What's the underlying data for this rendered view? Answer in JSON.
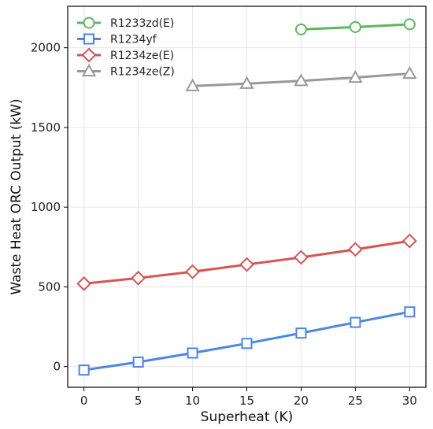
{
  "chart_data": {
    "type": "line",
    "title": "",
    "xlabel": "Superheat (K)",
    "ylabel": "Waste Heat ORC Output (kW)",
    "xlim": [
      -1.5,
      31.5
    ],
    "ylim": [
      -130,
      2260
    ],
    "xticks": [
      0,
      5,
      10,
      15,
      20,
      25,
      30
    ],
    "yticks": [
      0,
      500,
      1000,
      1500,
      2000
    ],
    "grid": true,
    "legend_position": "top-left",
    "series": [
      {
        "name": "R1233zd(E)",
        "color": "#5cb85c",
        "marker": "circle",
        "points": [
          [
            20,
            2115
          ],
          [
            25,
            2130
          ],
          [
            30,
            2147
          ]
        ]
      },
      {
        "name": "R1234yf",
        "color": "#4a86e8",
        "marker": "square",
        "points": [
          [
            0,
            -22
          ],
          [
            5,
            28
          ],
          [
            10,
            85
          ],
          [
            15,
            145
          ],
          [
            20,
            210
          ],
          [
            25,
            277
          ],
          [
            30,
            343
          ]
        ]
      },
      {
        "name": "R1234ze(E)",
        "color": "#d9534f",
        "marker": "diamond",
        "points": [
          [
            0,
            520
          ],
          [
            5,
            555
          ],
          [
            10,
            595
          ],
          [
            15,
            640
          ],
          [
            20,
            685
          ],
          [
            25,
            735
          ],
          [
            30,
            788
          ]
        ]
      },
      {
        "name": "R1234ze(Z)",
        "color": "#999999",
        "marker": "triangle",
        "points": [
          [
            10,
            1760
          ],
          [
            15,
            1775
          ],
          [
            20,
            1792
          ],
          [
            25,
            1813
          ],
          [
            30,
            1838
          ]
        ]
      }
    ]
  }
}
